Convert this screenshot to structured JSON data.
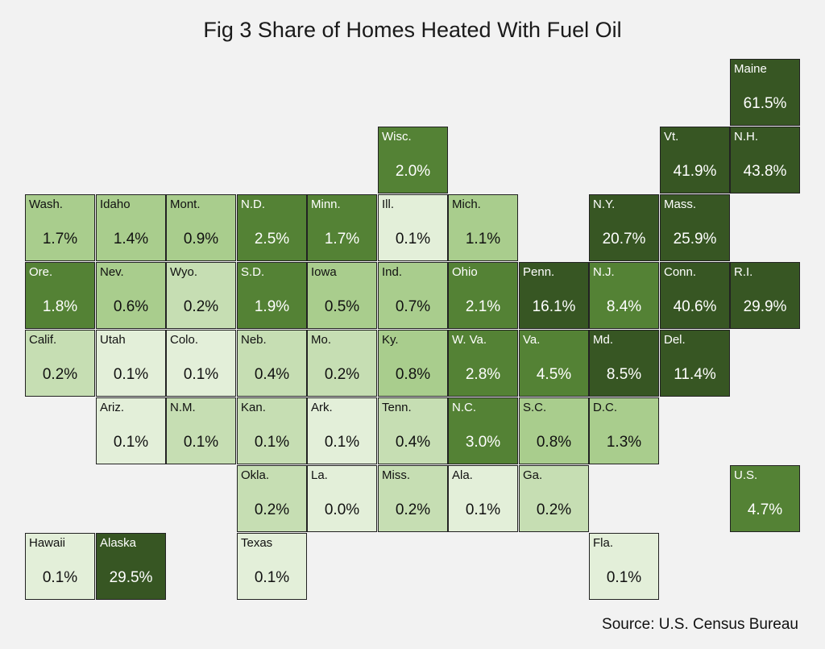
{
  "title": "Fig 3 Share of Homes Heated With Fuel Oil",
  "source": "Source: U.S. Census Bureau",
  "colors": {
    "level1": "#e3efd9",
    "level2": "#c6deb3",
    "level3": "#a9cd8d",
    "level4": "#548235",
    "level5": "#375623"
  },
  "tiles": [
    {
      "abbr": "Maine",
      "value": "61.5%",
      "col": 10,
      "row": 0,
      "level": 5
    },
    {
      "abbr": "Wisc.",
      "value": "2.0%",
      "col": 5,
      "row": 1,
      "level": 4
    },
    {
      "abbr": "Vt.",
      "value": "41.9%",
      "col": 9,
      "row": 1,
      "level": 5
    },
    {
      "abbr": "N.H.",
      "value": "43.8%",
      "col": 10,
      "row": 1,
      "level": 5
    },
    {
      "abbr": "Wash.",
      "value": "1.7%",
      "col": 0,
      "row": 2,
      "level": 3
    },
    {
      "abbr": "Idaho",
      "value": "1.4%",
      "col": 1,
      "row": 2,
      "level": 3
    },
    {
      "abbr": "Mont.",
      "value": "0.9%",
      "col": 2,
      "row": 2,
      "level": 3
    },
    {
      "abbr": "N.D.",
      "value": "2.5%",
      "col": 3,
      "row": 2,
      "level": 4
    },
    {
      "abbr": "Minn.",
      "value": "1.7%",
      "col": 4,
      "row": 2,
      "level": 4
    },
    {
      "abbr": "Ill.",
      "value": "0.1%",
      "col": 5,
      "row": 2,
      "level": 1
    },
    {
      "abbr": "Mich.",
      "value": "1.1%",
      "col": 6,
      "row": 2,
      "level": 3
    },
    {
      "abbr": "N.Y.",
      "value": "20.7%",
      "col": 8,
      "row": 2,
      "level": 5
    },
    {
      "abbr": "Mass.",
      "value": "25.9%",
      "col": 9,
      "row": 2,
      "level": 5
    },
    {
      "abbr": "Ore.",
      "value": "1.8%",
      "col": 0,
      "row": 3,
      "level": 4
    },
    {
      "abbr": "Nev.",
      "value": "0.6%",
      "col": 1,
      "row": 3,
      "level": 3
    },
    {
      "abbr": "Wyo.",
      "value": "0.2%",
      "col": 2,
      "row": 3,
      "level": 2
    },
    {
      "abbr": "S.D.",
      "value": "1.9%",
      "col": 3,
      "row": 3,
      "level": 4
    },
    {
      "abbr": "Iowa",
      "value": "0.5%",
      "col": 4,
      "row": 3,
      "level": 3
    },
    {
      "abbr": "Ind.",
      "value": "0.7%",
      "col": 5,
      "row": 3,
      "level": 3
    },
    {
      "abbr": "Ohio",
      "value": "2.1%",
      "col": 6,
      "row": 3,
      "level": 4
    },
    {
      "abbr": "Penn.",
      "value": "16.1%",
      "col": 7,
      "row": 3,
      "level": 5
    },
    {
      "abbr": "N.J.",
      "value": "8.4%",
      "col": 8,
      "row": 3,
      "level": 4
    },
    {
      "abbr": "Conn.",
      "value": "40.6%",
      "col": 9,
      "row": 3,
      "level": 5
    },
    {
      "abbr": "R.I.",
      "value": "29.9%",
      "col": 10,
      "row": 3,
      "level": 5
    },
    {
      "abbr": "Calif.",
      "value": "0.2%",
      "col": 0,
      "row": 4,
      "level": 2
    },
    {
      "abbr": "Utah",
      "value": "0.1%",
      "col": 1,
      "row": 4,
      "level": 1
    },
    {
      "abbr": "Colo.",
      "value": "0.1%",
      "col": 2,
      "row": 4,
      "level": 1
    },
    {
      "abbr": "Neb.",
      "value": "0.4%",
      "col": 3,
      "row": 4,
      "level": 2
    },
    {
      "abbr": "Mo.",
      "value": "0.2%",
      "col": 4,
      "row": 4,
      "level": 2
    },
    {
      "abbr": "Ky.",
      "value": "0.8%",
      "col": 5,
      "row": 4,
      "level": 3
    },
    {
      "abbr": "W. Va.",
      "value": "2.8%",
      "col": 6,
      "row": 4,
      "level": 4
    },
    {
      "abbr": "Va.",
      "value": "4.5%",
      "col": 7,
      "row": 4,
      "level": 4
    },
    {
      "abbr": "Md.",
      "value": "8.5%",
      "col": 8,
      "row": 4,
      "level": 5
    },
    {
      "abbr": "Del.",
      "value": "11.4%",
      "col": 9,
      "row": 4,
      "level": 5
    },
    {
      "abbr": "Ariz.",
      "value": "0.1%",
      "col": 1,
      "row": 5,
      "level": 1
    },
    {
      "abbr": "N.M.",
      "value": "0.1%",
      "col": 2,
      "row": 5,
      "level": 2
    },
    {
      "abbr": "Kan.",
      "value": "0.1%",
      "col": 3,
      "row": 5,
      "level": 2
    },
    {
      "abbr": "Ark.",
      "value": "0.1%",
      "col": 4,
      "row": 5,
      "level": 1
    },
    {
      "abbr": "Tenn.",
      "value": "0.4%",
      "col": 5,
      "row": 5,
      "level": 2
    },
    {
      "abbr": "N.C.",
      "value": "3.0%",
      "col": 6,
      "row": 5,
      "level": 4
    },
    {
      "abbr": "S.C.",
      "value": "0.8%",
      "col": 7,
      "row": 5,
      "level": 3
    },
    {
      "abbr": "D.C.",
      "value": "1.3%",
      "col": 8,
      "row": 5,
      "level": 3
    },
    {
      "abbr": "Okla.",
      "value": "0.2%",
      "col": 3,
      "row": 6,
      "level": 2
    },
    {
      "abbr": "La.",
      "value": "0.0%",
      "col": 4,
      "row": 6,
      "level": 1
    },
    {
      "abbr": "Miss.",
      "value": "0.2%",
      "col": 5,
      "row": 6,
      "level": 2
    },
    {
      "abbr": "Ala.",
      "value": "0.1%",
      "col": 6,
      "row": 6,
      "level": 1
    },
    {
      "abbr": "Ga.",
      "value": "0.2%",
      "col": 7,
      "row": 6,
      "level": 2
    },
    {
      "abbr": "U.S.",
      "value": "4.7%",
      "col": 10,
      "row": 6,
      "level": 4
    },
    {
      "abbr": "Hawaii",
      "value": "0.1%",
      "col": 0,
      "row": 7,
      "level": 1
    },
    {
      "abbr": "Alaska",
      "value": "29.5%",
      "col": 1,
      "row": 7,
      "level": 5
    },
    {
      "abbr": "Texas",
      "value": "0.1%",
      "col": 3,
      "row": 7,
      "level": 1
    },
    {
      "abbr": "Fla.",
      "value": "0.1%",
      "col": 8,
      "row": 7,
      "level": 1
    }
  ]
}
